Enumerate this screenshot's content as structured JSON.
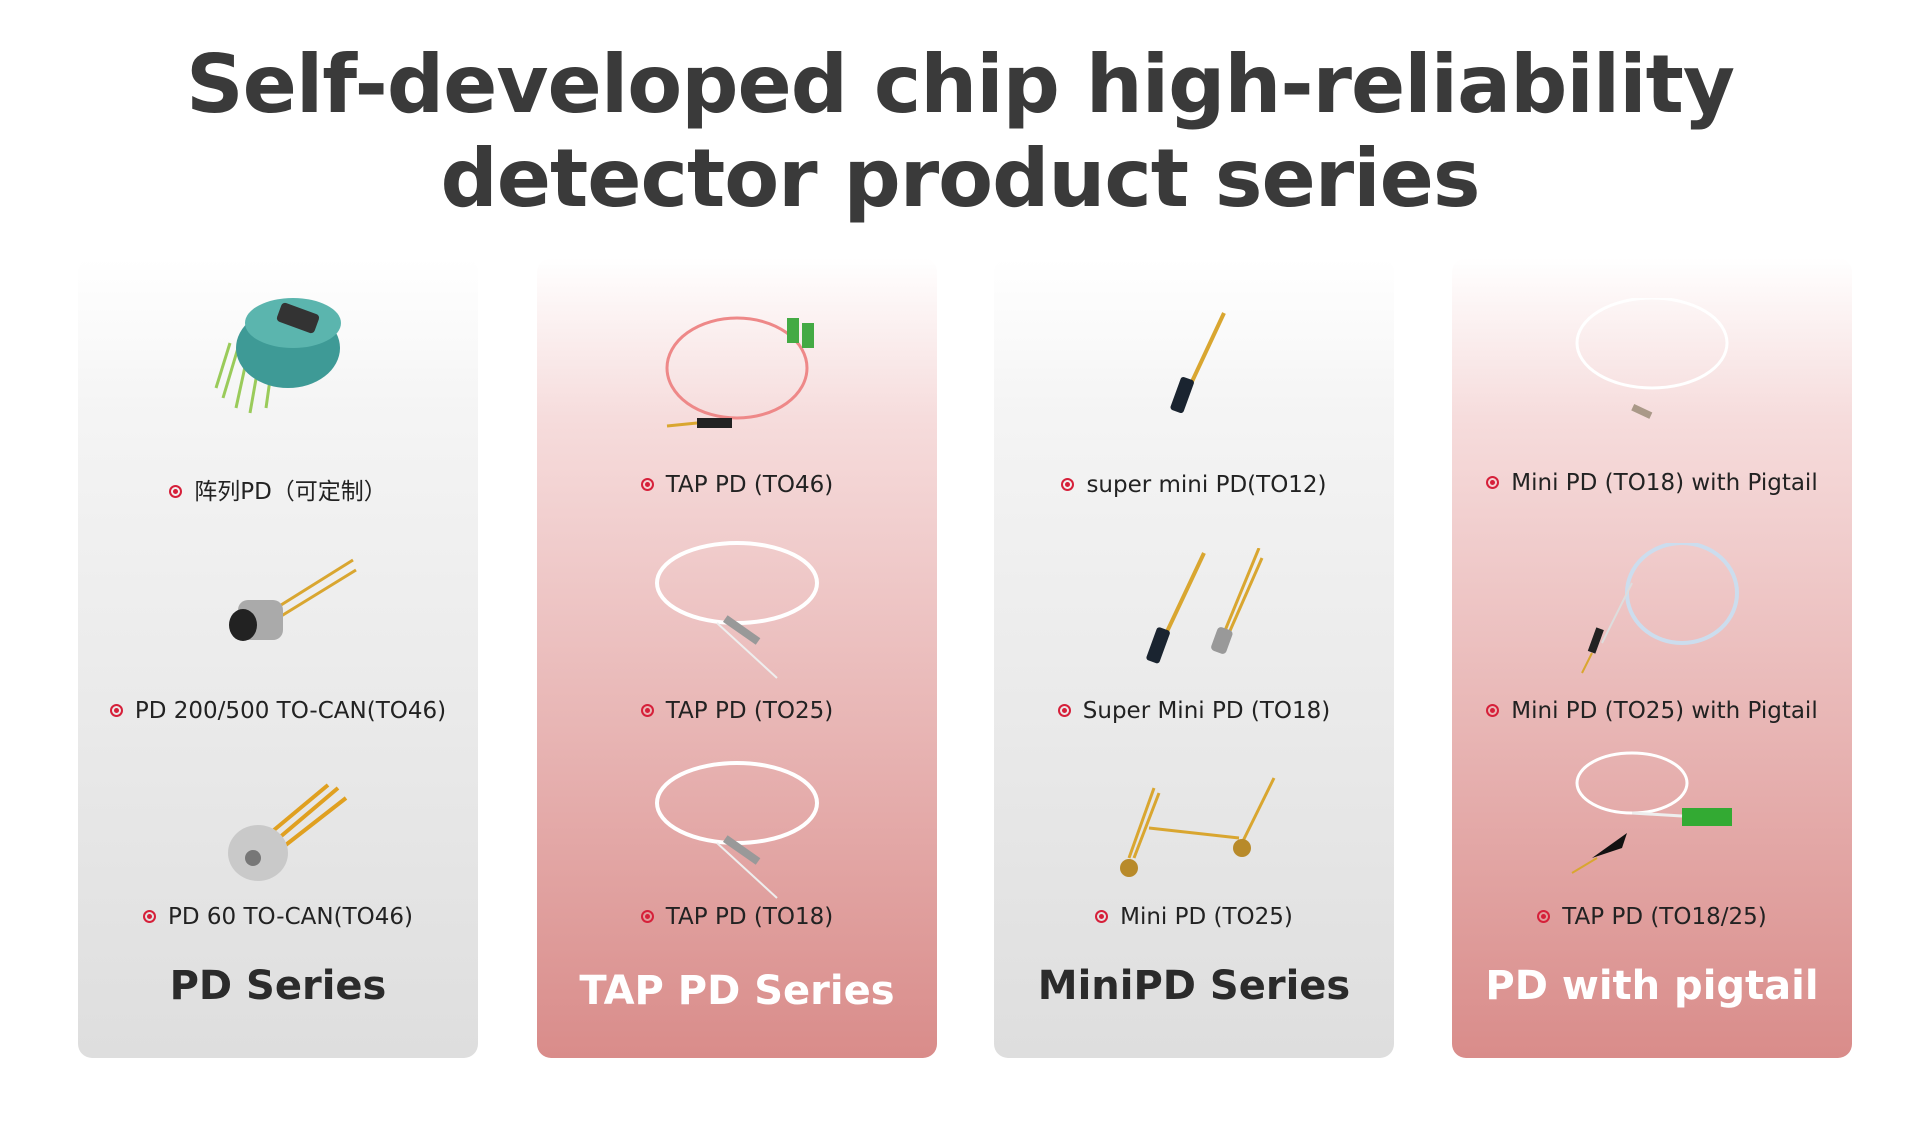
{
  "title": {
    "line1": "Self-developed chip high-reliability",
    "line2": "detector product series"
  },
  "colors": {
    "bullet": "#d6203a",
    "gray_card_bottom": "#dedede",
    "red_card_bottom": "#d98c8a"
  },
  "cards": [
    {
      "series": "PD Series",
      "style": "gray",
      "items": [
        "阵列PD（可定制）",
        "PD 200/500 TO-CAN(TO46)",
        "PD 60 TO-CAN(TO46)"
      ]
    },
    {
      "series": "TAP PD Series",
      "style": "red",
      "items": [
        "TAP PD (TO46)",
        "TAP PD (TO25)",
        "TAP PD (TO18)"
      ]
    },
    {
      "series": "MiniPD Series",
      "style": "gray",
      "items": [
        "super mini PD(TO12)",
        "Super Mini PD (TO18)",
        "Mini PD (TO25)"
      ]
    },
    {
      "series": "PD with pigtail",
      "style": "red",
      "items": [
        "Mini PD (TO18) with Pigtail",
        "Mini PD (TO25)  with Pigtail",
        "TAP PD (TO18/25)"
      ]
    }
  ]
}
